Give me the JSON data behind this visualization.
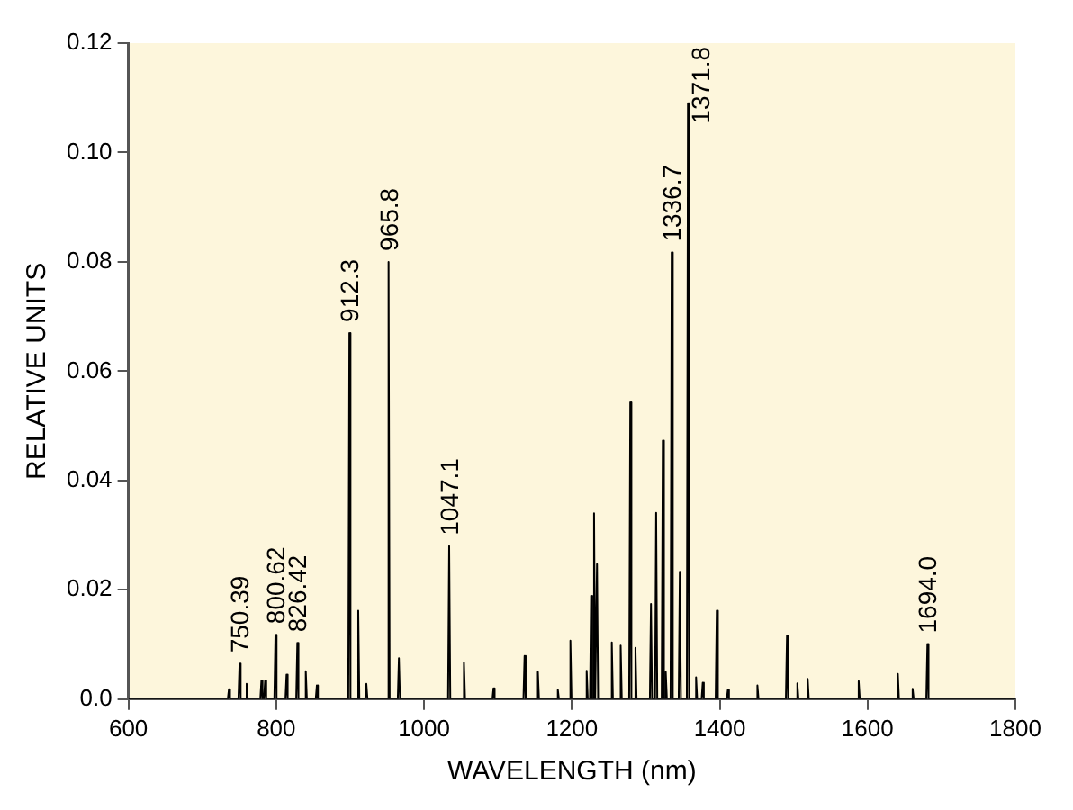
{
  "chart_data": {
    "type": "line",
    "xlabel": "WAVELENGTH (nm)",
    "ylabel": "RELATIVE UNITS",
    "xlim": [
      600,
      1800
    ],
    "xticks": [
      600,
      800,
      1000,
      1200,
      1400,
      1600,
      1800
    ],
    "ylim": [
      0,
      0.12
    ],
    "yticks": [
      {
        "value": 0,
        "label": "0.0"
      },
      {
        "value": 0.02,
        "label": "0.02"
      },
      {
        "value": 0.04,
        "label": "0.04"
      },
      {
        "value": 0.06,
        "label": "0.06"
      },
      {
        "value": 0.08,
        "label": "0.08"
      },
      {
        "value": 0.1,
        "label": "0.10"
      },
      {
        "value": 0.12,
        "label": "0.12"
      }
    ],
    "grid": false,
    "legend": false,
    "marker": "none",
    "line_style": "solid",
    "series": [
      {
        "color": "#000000",
        "x": [
          600,
          734.5,
          736,
          737.5,
          748.9,
          750.4,
          751.9,
          758.5,
          760,
          761.5,
          778.5,
          780,
          781.5,
          783.5,
          785,
          786.5,
          797.5,
          799,
          800.5,
          812.5,
          814,
          815.5,
          827.1,
          828.6,
          830.1,
          838.5,
          840,
          841.5,
          853.5,
          855,
          856.5,
          897.5,
          899,
          900.5,
          909.5,
          911,
          912.5,
          920.5,
          922,
          923.5,
          950.5,
          952,
          953.5,
          964.5,
          966,
          967.5,
          1032.5,
          1034,
          1035.5,
          1052.5,
          1054,
          1055.5,
          1092.5,
          1094,
          1095.5,
          1134.5,
          1136,
          1137.5,
          1152.5,
          1154,
          1155.5,
          1179.5,
          1181,
          1182.5,
          1196.5,
          1198,
          1199.5,
          1218.5,
          1220,
          1221.5,
          1224.5,
          1226,
          1227.5,
          1228.5,
          1230,
          1231.5,
          1232.5,
          1234,
          1235.5,
          1252.5,
          1254,
          1255.5,
          1264.5,
          1266,
          1267.5,
          1277.5,
          1279,
          1280.5,
          1284.5,
          1286,
          1287.5,
          1305.5,
          1307,
          1308.5,
          1312.5,
          1314,
          1315.5,
          1321.5,
          1323,
          1324.5,
          1325.5,
          1327,
          1328.5,
          1333.5,
          1335,
          1336.5,
          1344.5,
          1346,
          1347.5,
          1355.5,
          1357,
          1358.5,
          1366.5,
          1368,
          1369.5,
          1375.5,
          1377,
          1378.5,
          1394.5,
          1396,
          1397.5,
          1409.5,
          1411,
          1412.5,
          1449.5,
          1451,
          1452.5,
          1489.5,
          1491,
          1492.5,
          1503.5,
          1505,
          1506.5,
          1517.5,
          1519,
          1520.5,
          1586.5,
          1588,
          1589.5,
          1639.5,
          1641,
          1642.5,
          1659.5,
          1661,
          1662.5,
          1679.5,
          1681,
          1682.5,
          1800
        ],
        "values": [
          0,
          0,
          0.0018,
          0,
          0,
          0.0065,
          0,
          0,
          0.0028,
          0,
          0,
          0.0034,
          0,
          0,
          0.0034,
          0,
          0,
          0.0118,
          0,
          0,
          0.0045,
          0,
          0,
          0.0103,
          0,
          0,
          0.0051,
          0,
          0,
          0.0025,
          0,
          0,
          0.067,
          0,
          0,
          0.0162,
          0,
          0,
          0.0028,
          0,
          0,
          0.08,
          0,
          0,
          0.0075,
          0,
          0,
          0.028,
          0,
          0,
          0.0067,
          0,
          0,
          0.002,
          0,
          0,
          0.0079,
          0,
          0,
          0.005,
          0,
          0,
          0.0017,
          0,
          0,
          0.0107,
          0,
          0,
          0.0052,
          0,
          0,
          0.0189,
          0,
          0,
          0.034,
          0,
          0,
          0.0247,
          0,
          0,
          0.0104,
          0,
          0,
          0.0098,
          0,
          0,
          0.0543,
          0,
          0,
          0.0094,
          0,
          0,
          0.0174,
          0,
          0,
          0.0341,
          0,
          0,
          0.0473,
          0,
          0,
          0.005,
          0,
          0,
          0.0817,
          0,
          0,
          0.0233,
          0,
          0,
          0.109,
          0,
          0,
          0.004,
          0,
          0,
          0.003,
          0,
          0,
          0.0162,
          0,
          0,
          0.0017,
          0,
          0,
          0.0025,
          0,
          0,
          0.0116,
          0,
          0,
          0.0029,
          0,
          0,
          0.0037,
          0,
          0,
          0.0033,
          0,
          0,
          0.0046,
          0,
          0,
          0.0019,
          0,
          0,
          0.0101,
          0,
          0
        ]
      }
    ],
    "annotations": [
      {
        "text": "750.39",
        "x": 750.4,
        "y": 0.0065
      },
      {
        "text": "800.62",
        "x": 799,
        "y": 0.0118
      },
      {
        "text": "826.42",
        "x": 828.6,
        "y": 0.0103
      },
      {
        "text": "912.3",
        "x": 899,
        "y": 0.067
      },
      {
        "text": "965.8",
        "x": 952,
        "y": 0.08
      },
      {
        "text": "1047.1",
        "x": 1034,
        "y": 0.028
      },
      {
        "text": "1336.7",
        "x": 1335,
        "y": 0.0817
      },
      {
        "text": "1371.8",
        "x": 1357,
        "y": 0.109
      },
      {
        "text": "1694.0",
        "x": 1681,
        "y": 0.0101
      }
    ]
  }
}
